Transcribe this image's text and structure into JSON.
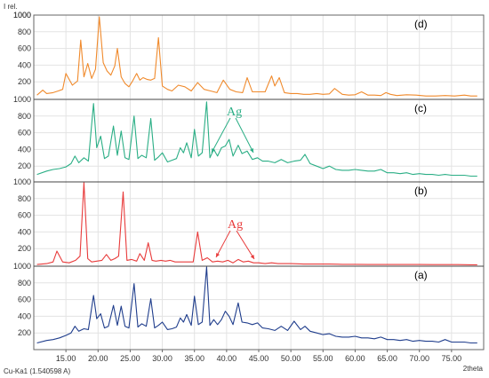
{
  "chart_data": {
    "type": "line",
    "y_axis_label": "I rel.",
    "x_axis_label": "2theta",
    "radiation_label": "Cu-Ka1 (1.540598 A)",
    "x_range": [
      10,
      80
    ],
    "x_ticks": [
      "15.00",
      "20.00",
      "25.00",
      "30.00",
      "35.00",
      "40.00",
      "45.00",
      "50.00",
      "55.00",
      "60.00",
      "65.00",
      "70.00",
      "75.00"
    ],
    "y_ticks": [
      "200",
      "400",
      "600",
      "800",
      "1000"
    ],
    "y_top_label": "1000",
    "y_range": [
      0,
      1000
    ],
    "grid": true,
    "panels": [
      {
        "label": "(d)",
        "color": "#f08a2c",
        "x": [
          10.5,
          11.4,
          12.0,
          13.0,
          13.8,
          14.5,
          15.0,
          16.0,
          16.8,
          17.3,
          17.8,
          18.4,
          19.0,
          19.6,
          20.2,
          20.8,
          21.4,
          22.0,
          22.6,
          23.0,
          23.6,
          24.2,
          24.8,
          25.3,
          26.0,
          26.5,
          27.0,
          27.6,
          28.2,
          28.8,
          29.4,
          30.0,
          30.8,
          31.5,
          32.5,
          33.5,
          34.5,
          35.5,
          36.5,
          37.5,
          38.5,
          39.5,
          40.5,
          41.5,
          42.5,
          43.2,
          44.0,
          45.0,
          46.0,
          47.0,
          47.5,
          48.2,
          49.0,
          50.0,
          51.0,
          52.0,
          53.0,
          54.0,
          55.0,
          56.0,
          56.8,
          58.0,
          59.0,
          60.0,
          61.0,
          62.0,
          63.0,
          64.0,
          64.8,
          65.5,
          66.5,
          68.0,
          69.5,
          71.0,
          72.5,
          74.0,
          75.5,
          77.0,
          78.0,
          79.0
        ],
        "y": [
          40,
          100,
          60,
          70,
          90,
          110,
          300,
          160,
          210,
          700,
          260,
          420,
          240,
          350,
          980,
          430,
          330,
          280,
          390,
          600,
          260,
          180,
          140,
          200,
          300,
          220,
          250,
          230,
          220,
          240,
          730,
          150,
          110,
          90,
          160,
          140,
          90,
          190,
          110,
          90,
          70,
          220,
          110,
          80,
          70,
          250,
          80,
          80,
          80,
          270,
          150,
          250,
          70,
          60,
          60,
          50,
          50,
          60,
          50,
          55,
          120,
          50,
          40,
          45,
          80,
          40,
          40,
          35,
          70,
          50,
          35,
          45,
          40,
          30,
          30,
          35,
          30,
          40,
          30,
          30
        ]
      },
      {
        "label": "(c)",
        "color": "#2aae85",
        "x": [
          10.5,
          12.0,
          13.0,
          14.0,
          15.0,
          15.8,
          16.4,
          17.0,
          17.8,
          18.5,
          19.3,
          19.8,
          20.4,
          21.0,
          21.6,
          22.4,
          23.0,
          23.6,
          24.2,
          24.8,
          25.6,
          26.2,
          26.8,
          27.5,
          28.2,
          28.8,
          29.4,
          30.0,
          30.8,
          31.5,
          32.2,
          32.8,
          33.3,
          33.8,
          34.5,
          35.0,
          35.6,
          36.2,
          36.9,
          37.4,
          38.0,
          38.6,
          39.2,
          39.8,
          40.4,
          41.0,
          41.8,
          42.4,
          43.2,
          44.0,
          44.8,
          45.6,
          46.5,
          47.5,
          48.5,
          49.5,
          50.5,
          51.5,
          52.2,
          53.0,
          54.0,
          55.0,
          56.0,
          57.0,
          58.0,
          59.0,
          60.0,
          61.0,
          62.0,
          63.0,
          64.0,
          65.0,
          66.0,
          67.0,
          68.0,
          69.0,
          70.0,
          71.0,
          72.0,
          73.0,
          74.0,
          75.0,
          76.0,
          77.0,
          78.0,
          79.0
        ],
        "y": [
          100,
          140,
          160,
          170,
          190,
          230,
          320,
          240,
          300,
          260,
          950,
          420,
          560,
          290,
          320,
          680,
          330,
          620,
          300,
          280,
          800,
          290,
          330,
          300,
          770,
          270,
          310,
          360,
          250,
          270,
          290,
          420,
          360,
          480,
          300,
          640,
          320,
          360,
          970,
          300,
          400,
          320,
          420,
          440,
          520,
          320,
          450,
          350,
          380,
          280,
          300,
          260,
          260,
          240,
          280,
          240,
          260,
          270,
          340,
          230,
          200,
          170,
          200,
          160,
          150,
          150,
          160,
          150,
          140,
          140,
          160,
          120,
          120,
          110,
          120,
          100,
          110,
          100,
          100,
          90,
          100,
          90,
          90,
          90,
          80,
          80
        ]
      },
      {
        "label": "(b)",
        "color": "#e83b3b",
        "x": [
          10.5,
          12.0,
          13.0,
          13.6,
          14.5,
          15.5,
          16.5,
          17.2,
          17.8,
          18.4,
          19.0,
          19.8,
          20.6,
          21.3,
          22.0,
          22.6,
          23.2,
          23.9,
          24.5,
          25.2,
          26.0,
          26.5,
          27.2,
          27.8,
          28.4,
          29.0,
          29.8,
          30.5,
          31.2,
          32.0,
          33.0,
          34.0,
          34.8,
          35.5,
          36.2,
          37.0,
          37.8,
          38.6,
          39.4,
          40.2,
          41.0,
          41.8,
          42.6,
          43.4,
          44.2,
          45.0,
          46.0,
          47.0,
          48.0,
          49.0,
          50.0,
          52.0,
          54.0,
          56.0,
          58.0,
          60.0,
          62.0,
          64.0,
          66.0,
          68.0,
          70.0,
          72.0,
          74.0,
          76.0,
          78.0,
          79.0
        ],
        "y": [
          10,
          20,
          40,
          170,
          40,
          30,
          60,
          110,
          990,
          80,
          40,
          50,
          60,
          130,
          60,
          80,
          110,
          880,
          60,
          70,
          50,
          140,
          60,
          270,
          60,
          50,
          60,
          50,
          60,
          40,
          40,
          40,
          40,
          400,
          60,
          90,
          40,
          50,
          40,
          60,
          30,
          70,
          40,
          50,
          30,
          30,
          20,
          30,
          20,
          20,
          20,
          15,
          15,
          15,
          12,
          12,
          10,
          10,
          10,
          10,
          10,
          8,
          8,
          8,
          6,
          6
        ]
      },
      {
        "label": "(a)",
        "color": "#1f3d8c",
        "x": [
          10.5,
          12.0,
          13.0,
          14.0,
          15.0,
          15.8,
          16.4,
          17.0,
          17.8,
          18.5,
          19.3,
          19.8,
          20.4,
          21.0,
          21.6,
          22.4,
          23.0,
          23.6,
          24.2,
          24.8,
          25.6,
          26.2,
          26.8,
          27.5,
          28.2,
          28.8,
          29.4,
          30.0,
          30.8,
          31.5,
          32.2,
          32.8,
          33.3,
          33.8,
          34.5,
          35.0,
          35.6,
          36.2,
          36.9,
          37.4,
          38.0,
          38.6,
          39.2,
          39.8,
          40.4,
          41.0,
          41.8,
          42.4,
          43.2,
          44.0,
          44.8,
          45.6,
          46.5,
          47.5,
          48.5,
          49.5,
          50.5,
          51.5,
          52.2,
          53.0,
          54.0,
          55.0,
          56.0,
          57.0,
          58.0,
          59.0,
          60.0,
          61.0,
          62.0,
          63.0,
          64.0,
          65.0,
          66.0,
          67.0,
          68.0,
          69.0,
          70.0,
          71.0,
          72.0,
          73.0,
          74.0,
          75.0,
          76.0,
          77.0,
          78.0,
          79.0
        ],
        "y": [
          80,
          110,
          120,
          140,
          170,
          200,
          280,
          220,
          250,
          240,
          650,
          370,
          430,
          260,
          280,
          530,
          290,
          520,
          280,
          260,
          790,
          270,
          310,
          280,
          610,
          260,
          290,
          330,
          240,
          250,
          270,
          380,
          330,
          420,
          290,
          640,
          300,
          330,
          990,
          290,
          360,
          300,
          360,
          460,
          400,
          300,
          560,
          330,
          320,
          300,
          320,
          260,
          250,
          230,
          280,
          230,
          340,
          240,
          280,
          220,
          200,
          180,
          190,
          160,
          150,
          150,
          160,
          140,
          140,
          130,
          150,
          120,
          120,
          110,
          120,
          100,
          110,
          100,
          100,
          90,
          120,
          90,
          90,
          90,
          80,
          80
        ]
      }
    ],
    "annotations": [
      {
        "text": "Ag",
        "color": "#2aae85"
      },
      {
        "text": "Ag",
        "color": "#e83b3b"
      }
    ]
  }
}
